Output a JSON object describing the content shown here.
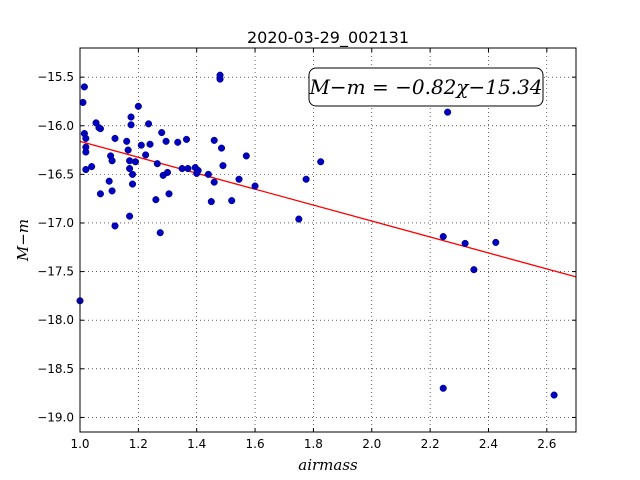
{
  "chart_data": {
    "type": "scatter",
    "title": "2020-03-29_002131",
    "xlabel": "airmass",
    "ylabel": "M−m",
    "xlim": [
      1.0,
      2.7
    ],
    "ylim": [
      -19.15,
      -15.2
    ],
    "x_ticks": [
      1.0,
      1.2,
      1.4,
      1.6,
      1.8,
      2.0,
      2.2,
      2.4,
      2.6
    ],
    "x_tick_labels": [
      "1.0",
      "1.2",
      "1.4",
      "1.6",
      "1.8",
      "2.0",
      "2.2",
      "2.4",
      "2.6"
    ],
    "y_ticks": [
      -15.5,
      -16.0,
      -16.5,
      -17.0,
      -17.5,
      -18.0,
      -18.5,
      -19.0
    ],
    "y_tick_labels": [
      "−15.5",
      "−16.0",
      "−16.5",
      "−17.0",
      "−17.5",
      "−18.0",
      "−18.5",
      "−19.0"
    ],
    "grid": true,
    "annotation": "M−m = −0.82χ−15.34",
    "annotation_position": "top-right",
    "fit_line": {
      "slope": -0.82,
      "intercept": -15.34,
      "color": "#ff0000"
    },
    "point_color": "#0000bf",
    "points": [
      [
        1.0,
        -17.8
      ],
      [
        1.01,
        -15.76
      ],
      [
        1.015,
        -15.6
      ],
      [
        1.015,
        -16.08
      ],
      [
        1.02,
        -16.13
      ],
      [
        1.02,
        -16.22
      ],
      [
        1.02,
        -16.27
      ],
      [
        1.02,
        -16.45
      ],
      [
        1.04,
        -16.42
      ],
      [
        1.055,
        -15.97
      ],
      [
        1.065,
        -16.02
      ],
      [
        1.07,
        -16.03
      ],
      [
        1.07,
        -16.7
      ],
      [
        1.1,
        -16.57
      ],
      [
        1.105,
        -16.31
      ],
      [
        1.11,
        -16.36
      ],
      [
        1.11,
        -16.67
      ],
      [
        1.12,
        -16.13
      ],
      [
        1.12,
        -17.03
      ],
      [
        1.16,
        -16.16
      ],
      [
        1.165,
        -16.25
      ],
      [
        1.17,
        -16.44
      ],
      [
        1.17,
        -16.36
      ],
      [
        1.17,
        -16.93
      ],
      [
        1.175,
        -15.99
      ],
      [
        1.175,
        -15.91
      ],
      [
        1.18,
        -16.5
      ],
      [
        1.18,
        -16.6
      ],
      [
        1.19,
        -16.37
      ],
      [
        1.2,
        -15.8
      ],
      [
        1.21,
        -16.2
      ],
      [
        1.225,
        -16.3
      ],
      [
        1.235,
        -15.98
      ],
      [
        1.24,
        -16.19
      ],
      [
        1.26,
        -16.76
      ],
      [
        1.265,
        -16.39
      ],
      [
        1.275,
        -17.1
      ],
      [
        1.28,
        -16.07
      ],
      [
        1.285,
        -16.51
      ],
      [
        1.295,
        -16.16
      ],
      [
        1.3,
        -16.48
      ],
      [
        1.305,
        -16.7
      ],
      [
        1.335,
        -16.17
      ],
      [
        1.35,
        -16.44
      ],
      [
        1.365,
        -16.14
      ],
      [
        1.37,
        -16.44
      ],
      [
        1.395,
        -16.43
      ],
      [
        1.4,
        -16.49
      ],
      [
        1.405,
        -16.46
      ],
      [
        1.44,
        -16.5
      ],
      [
        1.45,
        -16.78
      ],
      [
        1.46,
        -16.15
      ],
      [
        1.46,
        -16.58
      ],
      [
        1.48,
        -15.48
      ],
      [
        1.48,
        -15.52
      ],
      [
        1.485,
        -16.23
      ],
      [
        1.49,
        -16.41
      ],
      [
        1.52,
        -16.77
      ],
      [
        1.545,
        -16.55
      ],
      [
        1.57,
        -16.31
      ],
      [
        1.6,
        -16.62
      ],
      [
        1.75,
        -16.96
      ],
      [
        1.775,
        -16.55
      ],
      [
        1.825,
        -16.37
      ],
      [
        2.245,
        -17.14
      ],
      [
        2.245,
        -18.7
      ],
      [
        2.26,
        -15.86
      ],
      [
        2.32,
        -17.21
      ],
      [
        2.35,
        -17.48
      ],
      [
        2.425,
        -17.2
      ],
      [
        2.625,
        -18.77
      ]
    ]
  }
}
